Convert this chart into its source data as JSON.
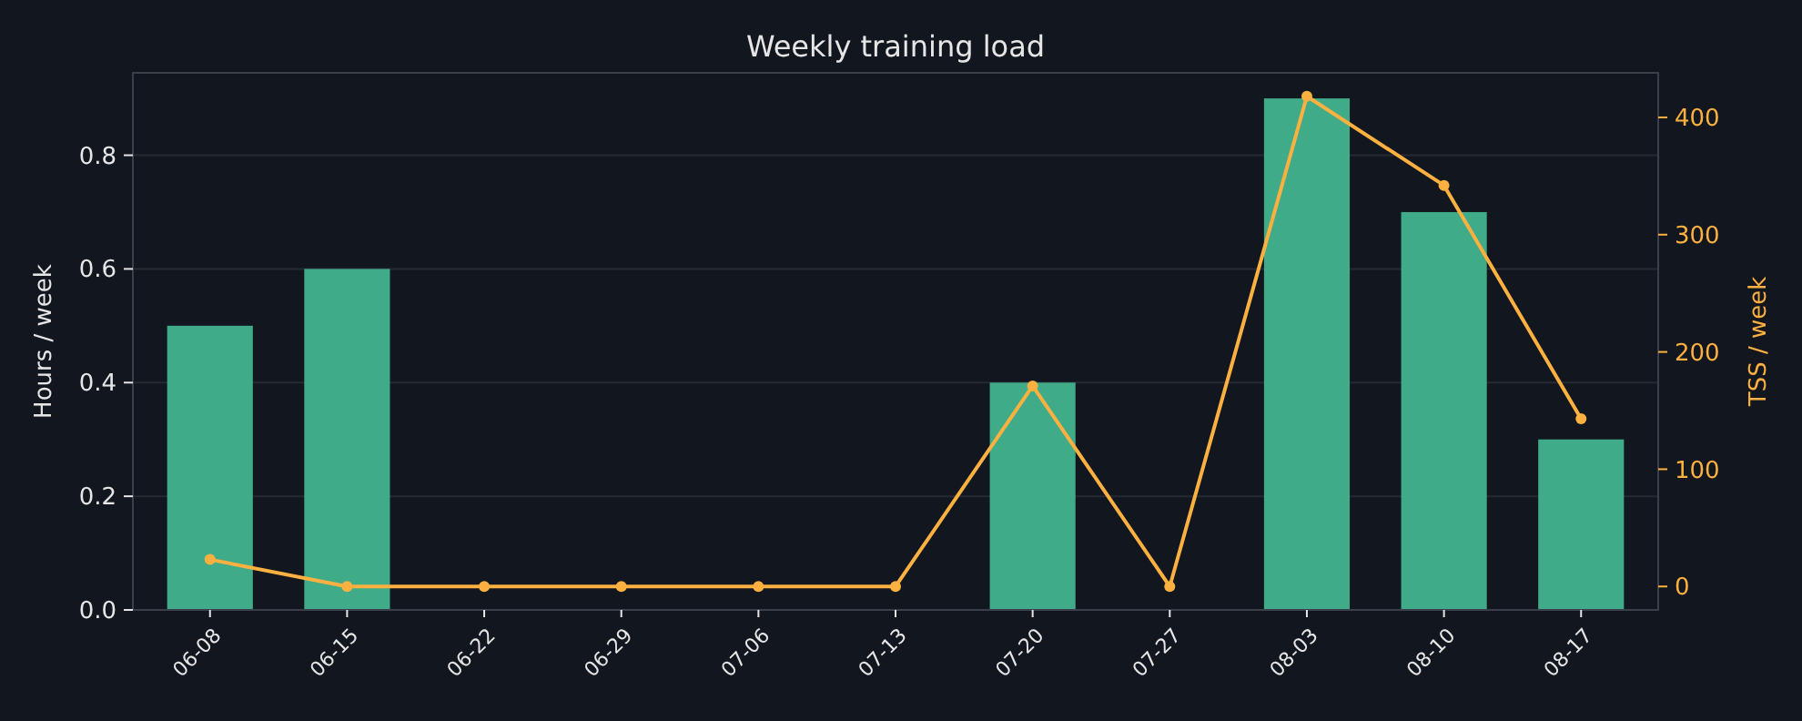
{
  "chart_data": {
    "type": "bar",
    "title": "Weekly training load",
    "ylabel": "Hours / week",
    "y2label": "TSS / week",
    "categories": [
      "06-08",
      "06-15",
      "06-22",
      "06-29",
      "07-06",
      "07-13",
      "07-20",
      "07-27",
      "08-03",
      "08-10",
      "08-17"
    ],
    "series": [
      {
        "color": "#43b38f",
        "values": [
          0.5,
          0.6,
          0,
          0,
          0,
          0,
          0.4,
          0,
          0.9,
          0.7,
          0.3
        ]
      },
      {
        "type": "line",
        "axis": "y2",
        "color": "#fbb040",
        "marker": "circle",
        "values": [
          23,
          0,
          0,
          0,
          0,
          0,
          171,
          0,
          418,
          342,
          143
        ]
      }
    ],
    "ylim": [
      0,
      0.945
    ],
    "yticks": [
      {
        "value": 0,
        "label": "0.0"
      },
      0.2,
      0.4,
      0.6,
      0.8
    ],
    "y2lim": [
      -20,
      438
    ],
    "y2ticks": [
      0,
      100,
      200,
      300,
      400
    ],
    "grid": "y"
  }
}
